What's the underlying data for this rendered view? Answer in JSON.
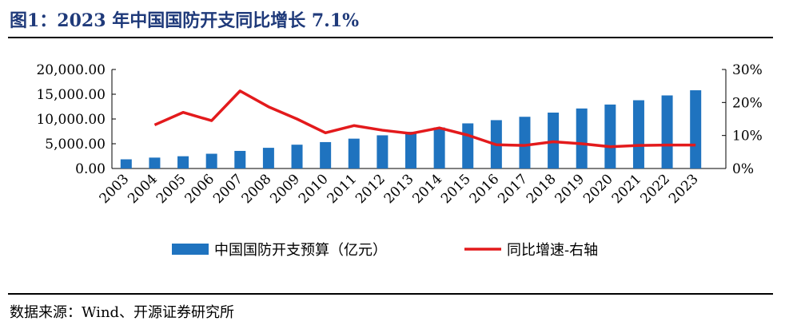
{
  "header": {
    "title": "图1：2023 年中国国防开支同比增长 7.1%"
  },
  "footer": {
    "source": "数据来源：Wind、开源证券研究所"
  },
  "colors": {
    "bar": "#1f73bf",
    "line": "#e31a1c",
    "title": "#1f3a7a"
  },
  "chart_data": {
    "type": "bar",
    "title": "",
    "categories": [
      "2003",
      "2004",
      "2005",
      "2006",
      "2007",
      "2008",
      "2009",
      "2010",
      "2011",
      "2012",
      "2013",
      "2014",
      "2015",
      "2016",
      "2017",
      "2018",
      "2019",
      "2020",
      "2021",
      "2022",
      "2023"
    ],
    "series": [
      {
        "name": "中国国防开支预算（亿元）",
        "type": "bar",
        "axis": "left",
        "values": [
          1853,
          2200,
          2475,
          2979,
          3555,
          4179,
          4807,
          5333,
          6028,
          6703,
          7410,
          8289,
          9115,
          9766,
          10444,
          11289,
          12122,
          12918,
          13787,
          14760,
          15800
        ]
      },
      {
        "name": "同比增速-右轴",
        "type": "line",
        "axis": "right",
        "values": [
          null,
          13.2,
          17.0,
          14.5,
          23.5,
          18.7,
          15.0,
          10.8,
          13.0,
          11.6,
          10.6,
          12.3,
          10.1,
          7.2,
          7.0,
          8.1,
          7.5,
          6.6,
          7.0,
          7.1,
          7.1
        ]
      }
    ],
    "y_left": {
      "min": 0,
      "max": 20000,
      "ticks": [
        "0.00",
        "5,000.00",
        "10,000.00",
        "15,000.00",
        "20,000.00"
      ]
    },
    "y_right": {
      "min": 0,
      "max": 30,
      "ticks": [
        "0%",
        "10%",
        "20%",
        "30%"
      ]
    },
    "grid": false,
    "legend": "bottom"
  }
}
